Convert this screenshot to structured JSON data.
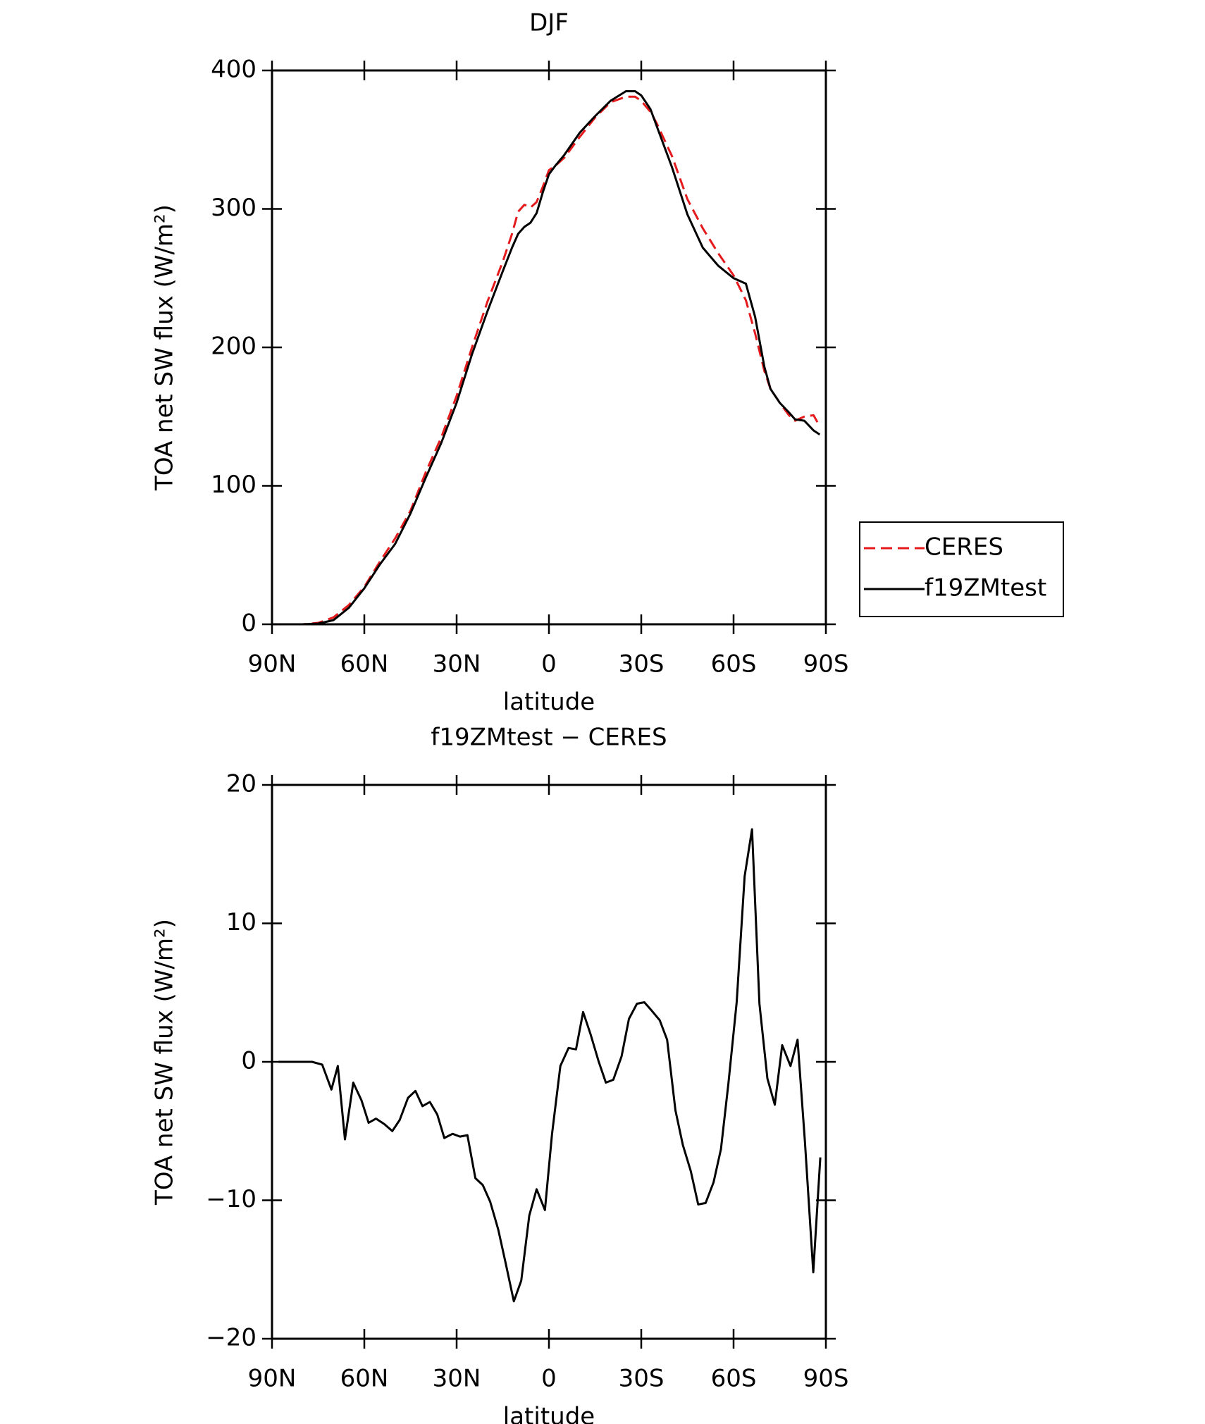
{
  "chart_data": [
    {
      "type": "line",
      "title": "DJF",
      "xlabel": "latitude",
      "ylabel": "TOA net SW flux (W/m²)",
      "x": [
        88,
        80,
        75,
        70,
        65,
        60,
        55,
        50,
        45,
        40,
        35,
        30,
        25,
        20,
        15,
        12,
        10,
        8,
        6,
        4,
        2,
        0,
        -2,
        -5,
        -10,
        -15,
        -20,
        -25,
        -28,
        -30,
        -33,
        -35,
        -40,
        -45,
        -50,
        -55,
        -60,
        -64,
        -67,
        -70,
        -72,
        -75,
        -78,
        -80,
        -83,
        -86,
        -88
      ],
      "series": [
        {
          "name": "CERES",
          "color": "#e41a1c",
          "dash": true,
          "values": [
            0,
            0,
            1,
            5,
            14,
            27,
            45,
            62,
            82,
            110,
            135,
            165,
            200,
            233,
            262,
            282,
            298,
            303,
            301,
            305,
            316,
            328,
            331,
            337,
            352,
            366,
            377,
            381,
            381,
            378,
            370,
            362,
            338,
            307,
            286,
            268,
            252,
            234,
            210,
            183,
            170,
            160,
            151,
            147,
            150,
            151,
            143
          ]
        },
        {
          "name": "f19ZMtest",
          "color": "#000000",
          "dash": false,
          "values": [
            0,
            0,
            0.5,
            3,
            12,
            26,
            43,
            58,
            80,
            106,
            131,
            160,
            195,
            226,
            255,
            272,
            282,
            287,
            290,
            297,
            312,
            325,
            331,
            339,
            355,
            367,
            378,
            385,
            385,
            382,
            372,
            360,
            330,
            296,
            272,
            259,
            250,
            246,
            222,
            186,
            170,
            160,
            153,
            148,
            147,
            140,
            137
          ]
        }
      ],
      "xlim": [
        90,
        -90
      ],
      "xticks": [
        {
          "value": 90,
          "label": "90N"
        },
        {
          "value": 60,
          "label": "60N"
        },
        {
          "value": 30,
          "label": "30N"
        },
        0,
        {
          "value": -30,
          "label": "30S"
        },
        {
          "value": -60,
          "label": "60S"
        },
        {
          "value": -90,
          "label": "90S"
        }
      ],
      "ylim": [
        0,
        400
      ],
      "yticks": [
        0,
        100,
        200,
        300,
        400
      ],
      "legend": "right"
    },
    {
      "type": "line",
      "title": "f19ZMtest − CERES",
      "xlabel": "latitude",
      "ylabel": "TOA net SW flux (W/m²)",
      "x": [
        87.9,
        80.5,
        77,
        73.7,
        70.7,
        68.6,
        66.3,
        63.6,
        60.9,
        58.6,
        56.2,
        53.5,
        50.9,
        48.5,
        45.8,
        43.4,
        41.1,
        38.7,
        36.3,
        34.0,
        31.3,
        28.9,
        26.5,
        23.9,
        21.5,
        19.1,
        16.5,
        14.1,
        11.4,
        9.0,
        6.4,
        4.0,
        1.3,
        -1.0,
        -3.7,
        -6.4,
        -8.8,
        -11.1,
        -13.5,
        -16.2,
        -18.5,
        -20.9,
        -23.6,
        -26.0,
        -28.6,
        -31.0,
        -33.4,
        -36.0,
        -38.4,
        -41.1,
        -43.5,
        -46.1,
        -48.5,
        -50.9,
        -53.5,
        -55.9,
        -58.3,
        -61.0,
        -63.6,
        -66.0,
        -68.4,
        -71.0,
        -73.4,
        -75.8,
        -78.5,
        -80.8,
        -83.2,
        -85.9,
        -88.2
      ],
      "values": [
        0,
        0,
        0,
        -0.2,
        -2,
        -0.3,
        -5.6,
        -1.5,
        -2.8,
        -4.4,
        -4.1,
        -4.5,
        -5.0,
        -4.2,
        -2.6,
        -2.1,
        -3.2,
        -2.9,
        -3.8,
        -5.5,
        -5.2,
        -5.4,
        -5.3,
        -8.4,
        -8.9,
        -10.1,
        -12.1,
        -14.5,
        -17.3,
        -15.8,
        -11.1,
        -9.2,
        -10.7,
        -5.2,
        -0.3,
        1.0,
        0.9,
        3.6,
        2.0,
        0,
        -1.5,
        -1.3,
        0.4,
        3.1,
        4.2,
        4.3,
        3.7,
        3.0,
        1.6,
        -3.5,
        -6.0,
        -7.9,
        -10.3,
        -10.2,
        -8.7,
        -6.3,
        -1.6,
        4.3,
        13.4,
        16.8,
        4.2,
        -1.2,
        -3.1,
        1.2,
        -0.3,
        1.6,
        -5.8,
        -15.2,
        -6.9
      ],
      "color": "#000000",
      "xlim": [
        90,
        -90
      ],
      "xticks": [
        {
          "value": 90,
          "label": "90N"
        },
        {
          "value": 60,
          "label": "60N"
        },
        {
          "value": 30,
          "label": "30N"
        },
        0,
        {
          "value": -30,
          "label": "30S"
        },
        {
          "value": -60,
          "label": "60S"
        },
        {
          "value": -90,
          "label": "90S"
        }
      ],
      "ylim": [
        -20,
        20
      ],
      "yticks": [
        {
          "value": -20,
          "label": "−20"
        },
        {
          "value": -10,
          "label": "−10"
        },
        0,
        10,
        20
      ]
    }
  ]
}
